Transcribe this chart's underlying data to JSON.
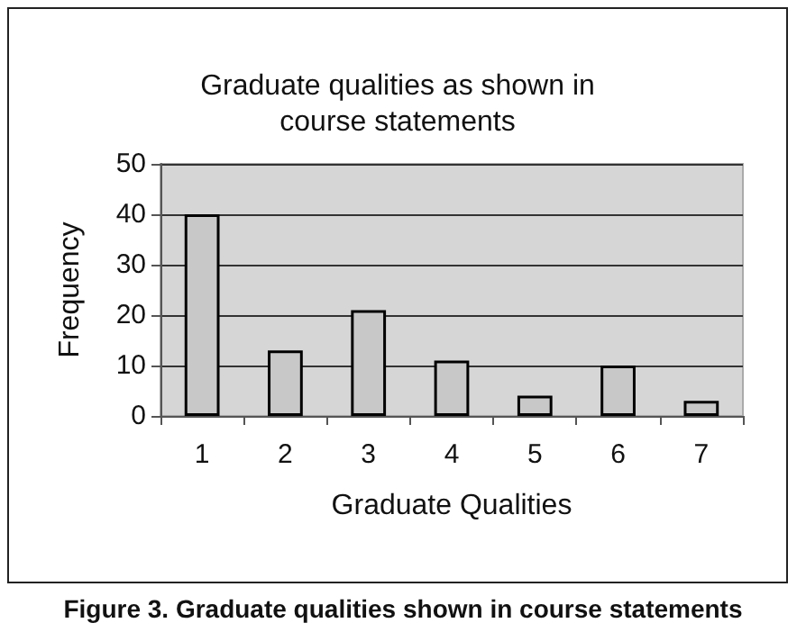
{
  "chart_data": {
    "type": "bar",
    "title": "Graduate qualities as shown in\ncourse statements",
    "xlabel": "Graduate Qualities",
    "ylabel": "Frequency",
    "categories": [
      "1",
      "2",
      "3",
      "4",
      "5",
      "6",
      "7"
    ],
    "values": [
      40,
      13,
      21,
      11,
      4,
      10,
      3
    ],
    "color": "#c8c8c8",
    "ylim": [
      0,
      50
    ],
    "yticks": [
      0,
      10,
      20,
      30,
      40,
      50
    ],
    "grid": "y",
    "annotations": [
      "Figure 3. Graduate qualities shown in course statements"
    ]
  }
}
